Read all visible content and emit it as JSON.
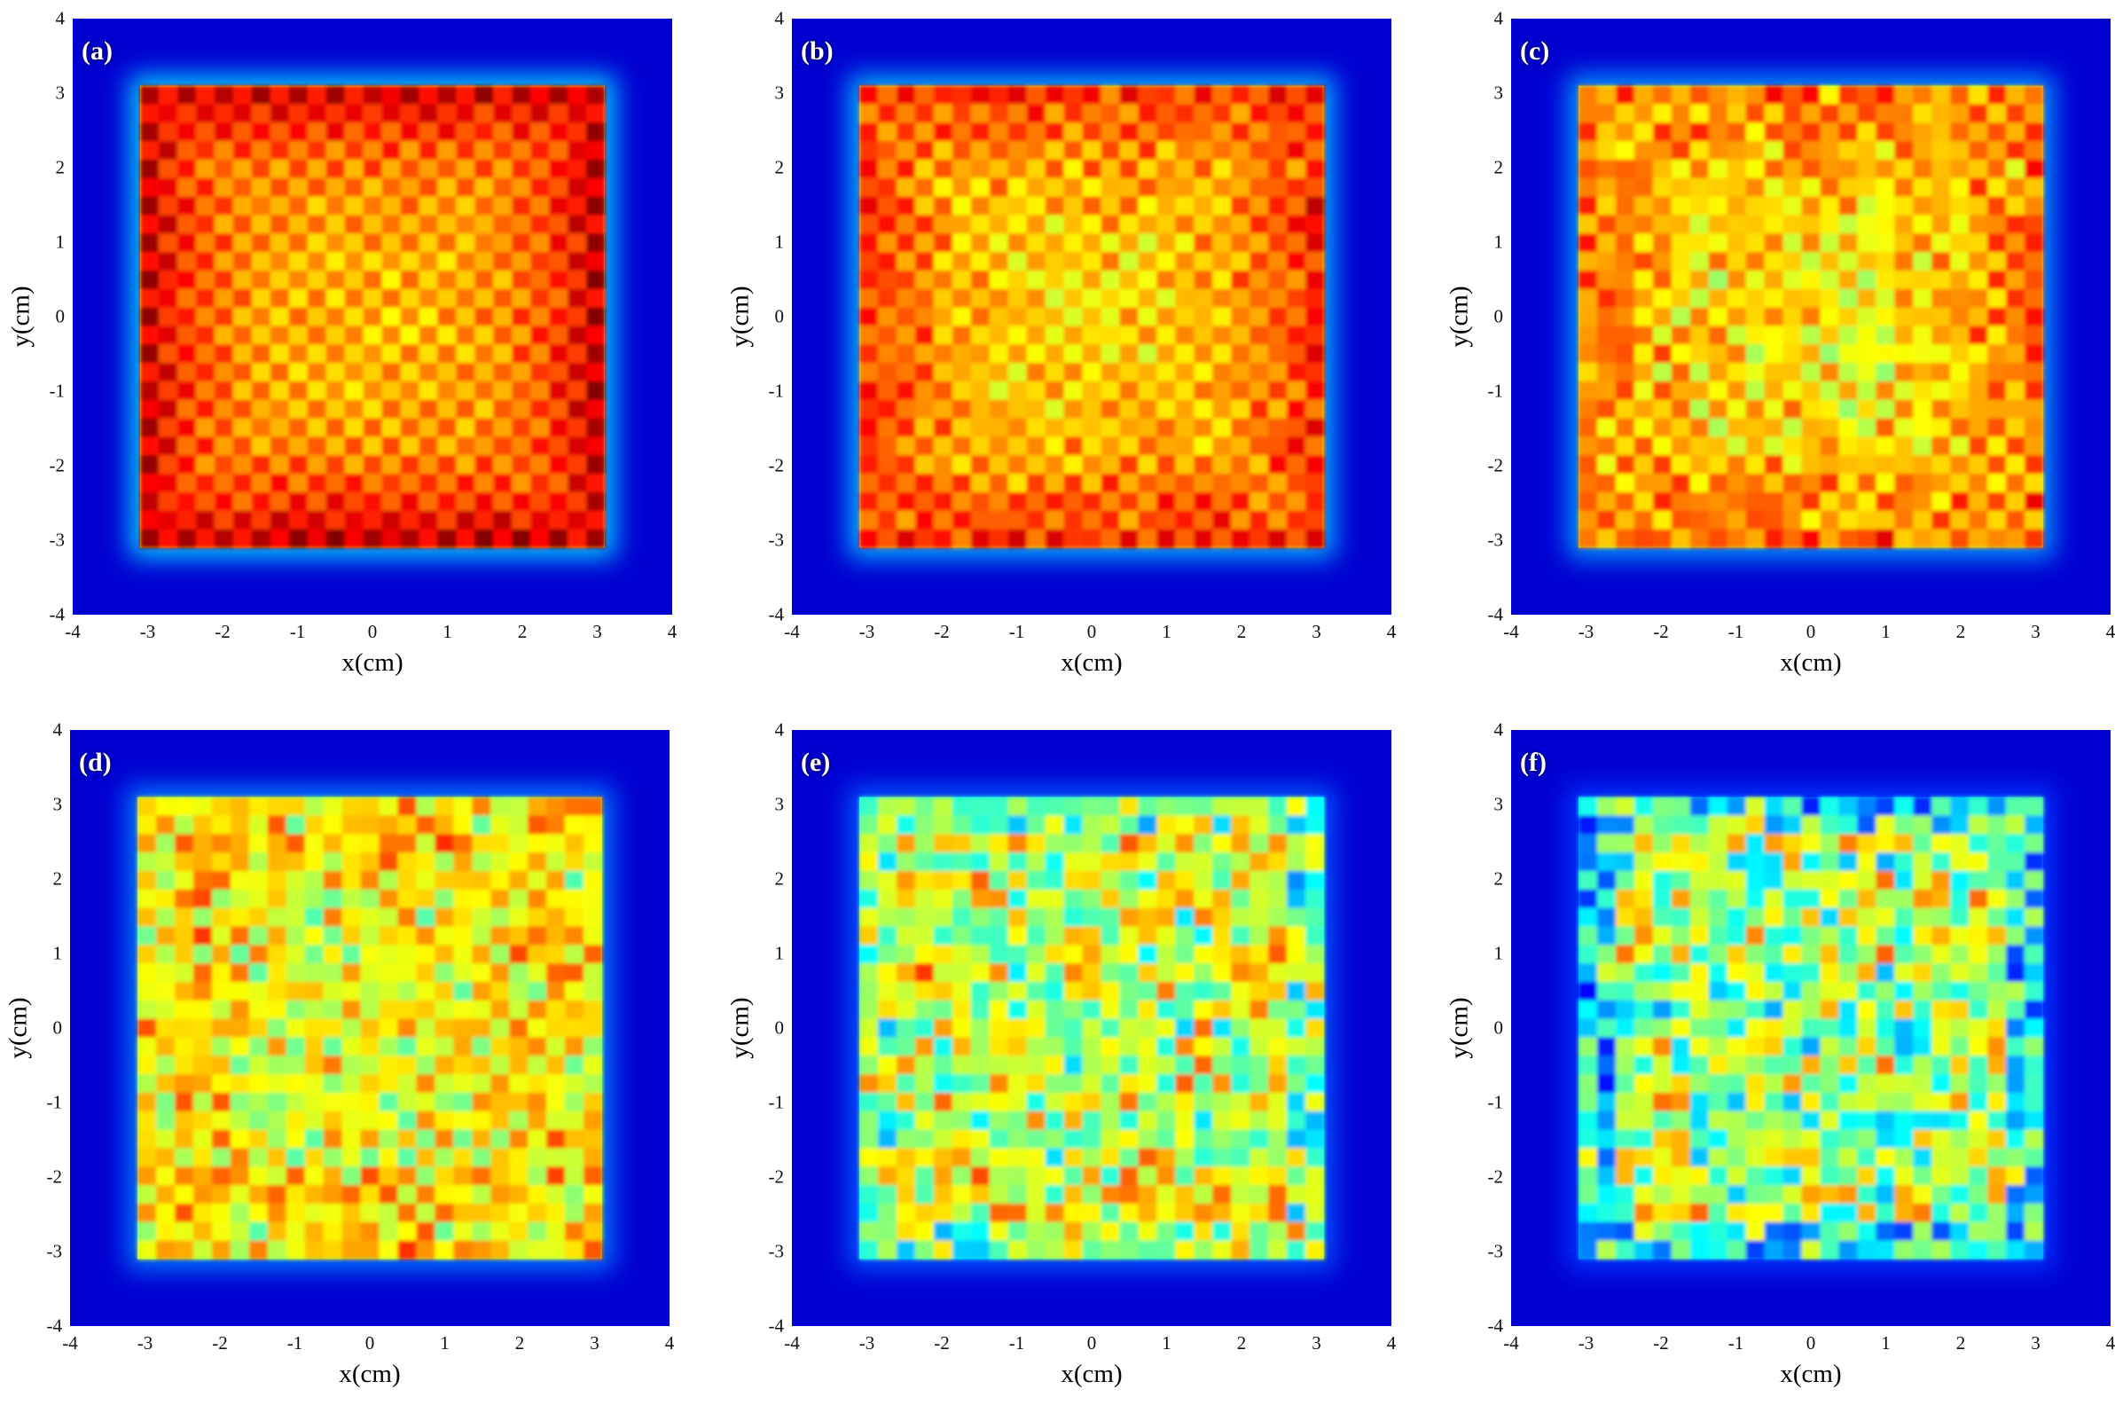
{
  "chart_data": [
    {
      "type": "heatmap",
      "panel_label": "(a)",
      "xlabel": "x(cm)",
      "ylabel": "y(cm)",
      "xlim": [
        -4,
        4
      ],
      "ylim": [
        -4,
        4
      ],
      "x_ticks": [
        "-4",
        "-3",
        "-2",
        "-1",
        "0",
        "1",
        "2",
        "3",
        "4"
      ],
      "y_ticks": [
        "4",
        "3",
        "2",
        "1",
        "0",
        "-1",
        "-2",
        "-3",
        "-4"
      ],
      "colormap": "jet",
      "field_extent_cm": [
        -3.1,
        3.1
      ],
      "grid_pitch_cm": 0.25,
      "degradation": 0.0
    },
    {
      "type": "heatmap",
      "panel_label": "(b)",
      "xlabel": "x(cm)",
      "ylabel": "y(cm)",
      "xlim": [
        -4,
        4
      ],
      "ylim": [
        -4,
        4
      ],
      "x_ticks": [
        "-4",
        "-3",
        "-2",
        "-1",
        "0",
        "1",
        "2",
        "3",
        "4"
      ],
      "y_ticks": [
        "4",
        "3",
        "2",
        "1",
        "0",
        "-1",
        "-2",
        "-3",
        "-4"
      ],
      "colormap": "jet",
      "field_extent_cm": [
        -3.1,
        3.1
      ],
      "grid_pitch_cm": 0.25,
      "degradation": 0.15
    },
    {
      "type": "heatmap",
      "panel_label": "(c)",
      "xlabel": "x(cm)",
      "ylabel": "y(cm)",
      "xlim": [
        -4,
        4
      ],
      "ylim": [
        -4,
        4
      ],
      "x_ticks": [
        "-4",
        "-3",
        "-2",
        "-1",
        "0",
        "1",
        "2",
        "3",
        "4"
      ],
      "y_ticks": [
        "4",
        "3",
        "2",
        "1",
        "0",
        "-1",
        "-2",
        "-3",
        "-4"
      ],
      "colormap": "jet",
      "field_extent_cm": [
        -3.1,
        3.1
      ],
      "grid_pitch_cm": 0.25,
      "degradation": 0.3
    },
    {
      "type": "heatmap",
      "panel_label": "(d)",
      "xlabel": "x(cm)",
      "ylabel": "y(cm)",
      "xlim": [
        -4,
        4
      ],
      "ylim": [
        -4,
        4
      ],
      "x_ticks": [
        "-4",
        "-3",
        "-2",
        "-1",
        "0",
        "1",
        "2",
        "3",
        "4"
      ],
      "y_ticks": [
        "4",
        "3",
        "2",
        "1",
        "0",
        "-1",
        "-2",
        "-3",
        "-4"
      ],
      "colormap": "jet",
      "field_extent_cm": [
        -3.1,
        3.1
      ],
      "grid_pitch_cm": 0.25,
      "degradation": 0.5
    },
    {
      "type": "heatmap",
      "panel_label": "(e)",
      "xlabel": "x(cm)",
      "ylabel": "y(cm)",
      "xlim": [
        -4,
        4
      ],
      "ylim": [
        -4,
        4
      ],
      "x_ticks": [
        "-4",
        "-3",
        "-2",
        "-1",
        "0",
        "1",
        "2",
        "3",
        "4"
      ],
      "y_ticks": [
        "4",
        "3",
        "2",
        "1",
        "0",
        "-1",
        "-2",
        "-3",
        "-4"
      ],
      "colormap": "jet",
      "field_extent_cm": [
        -3.1,
        3.1
      ],
      "grid_pitch_cm": 0.25,
      "degradation": 0.75
    },
    {
      "type": "heatmap",
      "panel_label": "(f)",
      "xlabel": "x(cm)",
      "ylabel": "y(cm)",
      "xlim": [
        -4,
        4
      ],
      "ylim": [
        -4,
        4
      ],
      "x_ticks": [
        "-4",
        "-3",
        "-2",
        "-1",
        "0",
        "1",
        "2",
        "3",
        "4"
      ],
      "y_ticks": [
        "4",
        "3",
        "2",
        "1",
        "0",
        "-1",
        "-2",
        "-3",
        "-4"
      ],
      "colormap": "jet",
      "field_extent_cm": [
        -3.1,
        3.1
      ],
      "grid_pitch_cm": 0.25,
      "degradation": 0.95
    }
  ]
}
